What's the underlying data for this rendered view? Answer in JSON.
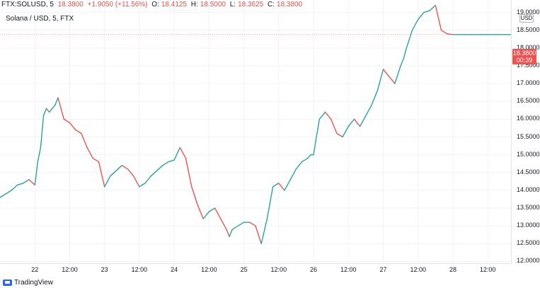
{
  "header": {
    "symbol": "FTX:SOLUSD, 5",
    "last": "18.3800",
    "change": "+1.9050 (+11.56%)",
    "o_label": "O:",
    "o_value": "18.4125",
    "h_label": "H:",
    "h_value": "18.5000",
    "l_label": "L:",
    "l_value": "18.3625",
    "c_label": "C:",
    "c_value": "18.3800"
  },
  "subtitle": "Solana / USD, 5, FTX",
  "currency": "USD",
  "price_tag": {
    "price": "18.3800",
    "countdown": "00:39"
  },
  "brand": "TradingView",
  "colors": {
    "up": "#26a69a",
    "down": "#ef5350",
    "grid": "#f0f3fa",
    "last_line": "#ef5350"
  },
  "chart_data": {
    "type": "line",
    "title": "Solana / USD, 5, FTX",
    "xlabel": "",
    "ylabel": "",
    "ylim": [
      11.95,
      19.35
    ],
    "yticks": [
      "19.0000",
      "18.5000",
      "18.0000",
      "17.5000",
      "17.0000",
      "16.5000",
      "16.0000",
      "15.5000",
      "15.0000",
      "14.5000",
      "14.0000",
      "13.5000",
      "13.0000",
      "12.5000",
      "12.0000"
    ],
    "xticks": [
      "22",
      "12:00",
      "23",
      "12:00",
      "24",
      "12:00",
      "25",
      "12:00",
      "26",
      "12:00",
      "27",
      "12:00",
      "28",
      "12:00"
    ],
    "xtick_hours": [
      24,
      36,
      48,
      60,
      72,
      84,
      96,
      108,
      120,
      132,
      144,
      156,
      168,
      180
    ],
    "xlim_hours": [
      12,
      188
    ],
    "last_price": 18.38,
    "series": [
      {
        "x_hours": [
          12,
          14,
          16,
          18,
          20,
          22,
          24,
          25,
          26,
          27,
          28,
          29,
          30,
          31,
          32,
          34,
          36,
          38,
          40,
          42,
          44,
          46,
          48,
          50,
          52,
          54,
          56,
          58,
          60,
          62,
          64,
          66,
          68,
          70,
          72,
          74,
          76,
          78,
          80,
          82,
          84,
          86,
          88,
          90,
          91,
          92,
          94,
          96,
          98,
          100,
          102,
          104,
          106,
          108,
          110,
          112,
          114,
          116,
          118,
          119,
          120,
          121,
          122,
          124,
          126,
          128,
          130,
          132,
          134,
          136,
          138,
          140,
          142,
          144,
          146,
          148,
          150,
          151,
          152,
          154,
          156,
          158,
          160,
          162,
          164,
          166,
          168,
          170,
          172,
          174,
          176,
          178,
          180,
          182,
          184,
          185,
          186,
          187,
          188
        ],
        "values": [
          13.8,
          13.9,
          14.0,
          14.15,
          14.2,
          14.3,
          14.15,
          14.8,
          15.2,
          16.1,
          16.3,
          16.2,
          16.3,
          16.4,
          16.6,
          16.0,
          15.9,
          15.7,
          15.6,
          15.2,
          14.9,
          14.8,
          14.1,
          14.4,
          14.55,
          14.7,
          14.6,
          14.4,
          14.1,
          14.2,
          14.4,
          14.55,
          14.7,
          14.8,
          14.85,
          15.2,
          14.9,
          14.1,
          13.6,
          13.2,
          13.4,
          13.5,
          13.2,
          12.9,
          12.7,
          12.9,
          13.0,
          13.1,
          13.1,
          13.0,
          12.5,
          13.2,
          14.1,
          14.2,
          14.0,
          14.3,
          14.6,
          14.8,
          14.9,
          15.0,
          15.0,
          15.5,
          16.0,
          16.2,
          16.0,
          15.6,
          15.5,
          15.8,
          16.0,
          15.8,
          16.1,
          16.4,
          16.8,
          17.4,
          17.2,
          17.0,
          17.5,
          17.7,
          18.0,
          18.5,
          18.8,
          19.0,
          19.05,
          19.2,
          18.5,
          18.4,
          18.38,
          18.38,
          18.38,
          18.38,
          18.38,
          18.38,
          18.38,
          18.38,
          18.38,
          18.38,
          18.38,
          18.38,
          18.38
        ]
      }
    ]
  }
}
